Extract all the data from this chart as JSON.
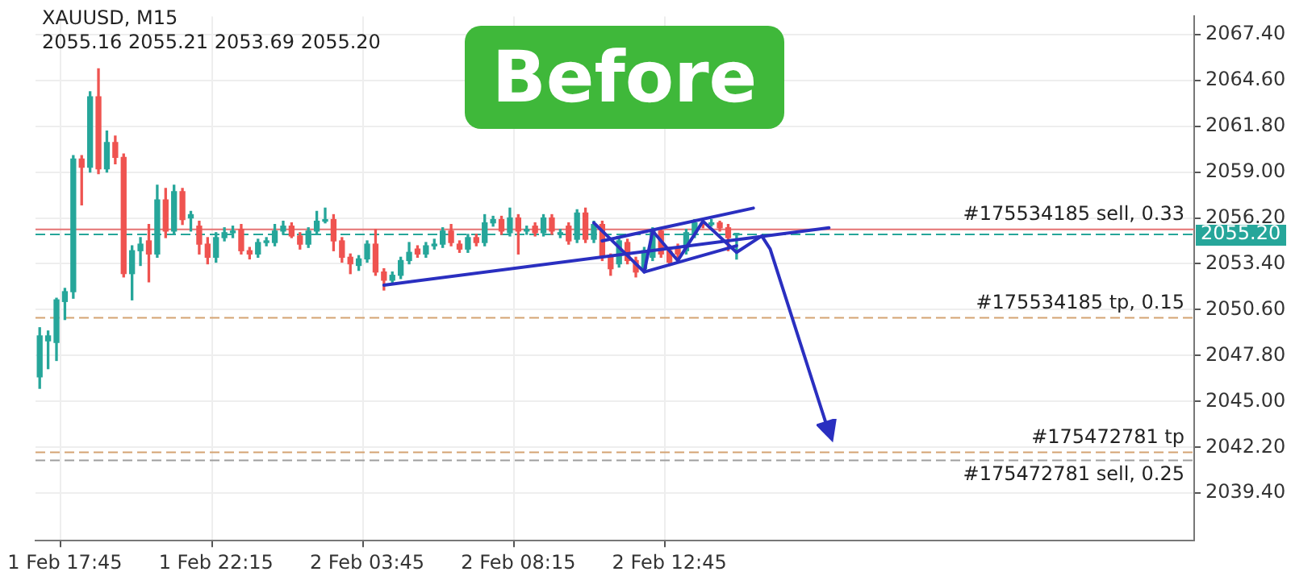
{
  "chart_data": {
    "type": "candlestick",
    "title": "XAUUSD, M15",
    "subtitle": "2055.16 2055.21 2053.69 2055.20",
    "annotations": [
      "Before"
    ],
    "categories": [
      null,
      null,
      null,
      "1 Feb 17:45",
      null,
      null,
      null,
      null,
      null,
      null,
      null,
      null,
      null,
      null,
      null,
      null,
      null,
      null,
      null,
      null,
      null,
      "1 Feb 22:15",
      null,
      null,
      null,
      null,
      null,
      null,
      null,
      null,
      null,
      null,
      null,
      null,
      null,
      null,
      null,
      null,
      null,
      "2 Feb 03:45",
      null,
      null,
      null,
      null,
      null,
      null,
      null,
      null,
      null,
      null,
      null,
      null,
      null,
      null,
      null,
      null,
      null,
      "2 Feb 08:15",
      null,
      null,
      null,
      null,
      null,
      null,
      null,
      null,
      null,
      null,
      null,
      null,
      null,
      null,
      null,
      null,
      null,
      "2 Feb 12:45",
      null,
      null,
      null,
      null,
      null,
      null,
      null,
      null,
      null,
      null,
      null,
      null,
      null,
      null,
      null,
      null,
      null,
      null,
      null,
      null,
      null,
      null,
      null,
      null,
      null,
      null,
      null,
      null,
      null,
      null,
      null,
      null,
      null,
      null,
      null,
      null,
      null,
      null,
      null,
      null,
      null,
      null,
      null,
      null,
      null,
      null,
      null,
      null,
      null,
      null,
      null,
      null,
      null,
      null,
      null,
      null,
      null,
      null,
      null,
      null,
      null,
      null
    ],
    "ohlc": [
      [
        2046.5,
        2049.5,
        2045.8,
        2049.0
      ],
      [
        2048.7,
        2049.3,
        2047.0,
        2049.0
      ],
      [
        2048.6,
        2051.3,
        2047.5,
        2051.2
      ],
      [
        2051.1,
        2051.9,
        2050.0,
        2051.7
      ],
      [
        2051.7,
        2060.0,
        2051.3,
        2059.8
      ],
      [
        2059.8,
        2060.0,
        2057.0,
        2059.3
      ],
      [
        2059.3,
        2063.9,
        2059.0,
        2063.6
      ],
      [
        2063.6,
        2065.3,
        2058.9,
        2059.2
      ],
      [
        2059.2,
        2061.5,
        2059.0,
        2060.8
      ],
      [
        2060.8,
        2061.2,
        2059.5,
        2059.9
      ],
      [
        2059.9,
        2060.1,
        2052.6,
        2052.8
      ],
      [
        2052.8,
        2054.5,
        2051.2,
        2054.2
      ],
      [
        2054.2,
        2055.0,
        2053.3,
        2054.6
      ],
      [
        2054.8,
        2055.8,
        2052.3,
        2054.0
      ],
      [
        2054.0,
        2058.2,
        2053.8,
        2057.3
      ],
      [
        2057.3,
        2058.0,
        2055.0,
        2055.4
      ],
      [
        2055.4,
        2058.2,
        2055.2,
        2057.8
      ],
      [
        2057.8,
        2058.0,
        2055.8,
        2056.1
      ],
      [
        2056.2,
        2056.6,
        2055.4,
        2056.4
      ],
      [
        2055.7,
        2056.0,
        2054.0,
        2054.6
      ],
      [
        2054.6,
        2055.0,
        2053.4,
        2053.8
      ],
      [
        2053.8,
        2055.3,
        2053.5,
        2055.0
      ],
      [
        2055.0,
        2055.6,
        2054.8,
        2055.3
      ],
      [
        2055.3,
        2055.7,
        2055.0,
        2055.4
      ],
      [
        2055.5,
        2055.8,
        2054.0,
        2054.2
      ],
      [
        2054.2,
        2054.4,
        2053.7,
        2054.0
      ],
      [
        2054.0,
        2054.9,
        2053.8,
        2054.7
      ],
      [
        2054.7,
        2055.0,
        2054.5,
        2054.8
      ],
      [
        2054.7,
        2055.8,
        2054.5,
        2055.4
      ],
      [
        2055.4,
        2056.0,
        2055.2,
        2055.7
      ],
      [
        2055.7,
        2055.9,
        2055.0,
        2055.1
      ],
      [
        2055.1,
        2055.3,
        2054.3,
        2054.6
      ],
      [
        2054.6,
        2055.6,
        2054.4,
        2055.4
      ],
      [
        2055.4,
        2056.6,
        2055.2,
        2056.0
      ],
      [
        2056.0,
        2056.8,
        2055.9,
        2056.1
      ],
      [
        2056.1,
        2056.4,
        2054.2,
        2054.8
      ],
      [
        2054.8,
        2055.0,
        2053.5,
        2053.8
      ],
      [
        2053.8,
        2054.0,
        2052.8,
        2053.4
      ],
      [
        2053.3,
        2053.9,
        2053.0,
        2053.7
      ],
      [
        2053.7,
        2054.8,
        2053.5,
        2054.6
      ],
      [
        2054.6,
        2055.5,
        2052.7,
        2052.9
      ],
      [
        2052.9,
        2053.1,
        2051.8,
        2052.4
      ],
      [
        2052.4,
        2052.9,
        2052.2,
        2052.7
      ],
      [
        2052.7,
        2053.8,
        2052.5,
        2053.6
      ],
      [
        2053.6,
        2054.7,
        2053.4,
        2054.1
      ],
      [
        2054.3,
        2054.5,
        2053.8,
        2054.0
      ],
      [
        2054.0,
        2054.7,
        2053.8,
        2054.5
      ],
      [
        2054.5,
        2054.9,
        2054.3,
        2054.6
      ],
      [
        2054.6,
        2055.6,
        2054.4,
        2055.4
      ],
      [
        2055.4,
        2055.8,
        2054.5,
        2054.7
      ],
      [
        2054.6,
        2054.8,
        2054.1,
        2054.3
      ],
      [
        2054.3,
        2055.2,
        2054.1,
        2055.0
      ],
      [
        2055.0,
        2055.2,
        2054.5,
        2054.7
      ],
      [
        2054.7,
        2056.4,
        2054.5,
        2055.9
      ],
      [
        2055.9,
        2056.3,
        2055.7,
        2056.1
      ],
      [
        2056.1,
        2056.3,
        2055.2,
        2055.4
      ],
      [
        2055.3,
        2056.8,
        2055.1,
        2056.2
      ],
      [
        2056.2,
        2056.4,
        2054.0,
        2055.4
      ],
      [
        2055.4,
        2055.7,
        2055.2,
        2055.5
      ],
      [
        2055.7,
        2055.9,
        2055.1,
        2055.3
      ],
      [
        2055.3,
        2056.4,
        2055.1,
        2056.2
      ],
      [
        2056.2,
        2056.4,
        2055.2,
        2055.4
      ],
      [
        2055.2,
        2055.5,
        2055.0,
        2055.3
      ],
      [
        2055.7,
        2055.9,
        2054.6,
        2054.8
      ],
      [
        2054.9,
        2056.7,
        2054.7,
        2056.5
      ],
      [
        2056.5,
        2056.8,
        2054.7,
        2054.9
      ],
      [
        2054.9,
        2056.0,
        2054.7,
        2055.8
      ],
      [
        2055.8,
        2056.0,
        2053.6,
        2053.8
      ],
      [
        2053.8,
        2054.0,
        2052.7,
        2053.1
      ],
      [
        2053.4,
        2055.0,
        2053.2,
        2054.8
      ],
      [
        2054.7,
        2054.9,
        2053.4,
        2053.6
      ],
      [
        2053.6,
        2053.8,
        2052.6,
        2052.9
      ],
      [
        2053.1,
        2054.4,
        2052.9,
        2054.2
      ],
      [
        2053.8,
        2055.6,
        2053.6,
        2055.4
      ],
      [
        2055.4,
        2055.6,
        2053.8,
        2054.0
      ],
      [
        2054.2,
        2054.4,
        2053.3,
        2053.5
      ],
      [
        2054.4,
        2054.6,
        2053.8,
        2054.0
      ],
      [
        2054.2,
        2055.5,
        2054.0,
        2055.3
      ],
      [
        2055.2,
        2056.1,
        2055.0,
        2055.9
      ],
      [
        2055.9,
        2056.1,
        2055.6,
        2055.8
      ],
      [
        2055.8,
        2056.1,
        2055.7,
        2055.9
      ],
      [
        2055.9,
        2056.0,
        2055.4,
        2055.6
      ],
      [
        2055.6,
        2055.8,
        2054.2,
        2055.0
      ],
      [
        2055.16,
        2055.21,
        2053.69,
        2055.2
      ],
      null,
      null,
      null,
      null,
      null,
      null,
      null,
      null,
      null,
      null,
      null,
      null,
      null,
      null,
      null,
      null,
      null,
      null,
      null,
      null,
      null,
      null,
      null,
      null,
      null,
      null,
      null,
      null,
      null,
      null,
      null,
      null,
      null,
      null,
      null,
      null,
      null,
      null,
      null,
      null,
      null,
      null,
      null,
      null,
      null,
      null,
      null,
      null,
      null,
      null,
      null,
      null,
      null,
      null
    ],
    "colors": [
      "#26a69a",
      "#26a69a",
      "#26a69a",
      "#26a69a",
      "#26a69a",
      "#ef5350",
      "#26a69a",
      "#ef5350",
      "#26a69a",
      "#ef5350",
      "#ef5350",
      "#26a69a",
      "#26a69a",
      "#ef5350",
      "#26a69a",
      "#ef5350",
      "#26a69a",
      "#ef5350",
      "#26a69a",
      "#ef5350",
      "#ef5350",
      "#26a69a",
      "#26a69a",
      "#26a69a",
      "#ef5350",
      "#ef5350",
      "#26a69a",
      "#26a69a",
      "#26a69a",
      "#26a69a",
      "#ef5350",
      "#ef5350",
      "#26a69a",
      "#26a69a",
      "#26a69a",
      "#ef5350",
      "#ef5350",
      "#ef5350",
      "#26a69a",
      "#26a69a",
      "#ef5350",
      "#ef5350",
      "#26a69a",
      "#26a69a",
      "#26a69a",
      "#ef5350",
      "#26a69a",
      "#26a69a",
      "#26a69a",
      "#ef5350",
      "#ef5350",
      "#26a69a",
      "#ef5350",
      "#26a69a",
      "#26a69a",
      "#ef5350",
      "#26a69a",
      "#ef5350",
      "#26a69a",
      "#ef5350",
      "#26a69a",
      "#ef5350",
      "#26a69a",
      "#ef5350",
      "#26a69a",
      "#ef5350",
      "#26a69a",
      "#ef5350",
      "#ef5350",
      "#26a69a",
      "#ef5350",
      "#ef5350",
      "#26a69a",
      "#26a69a",
      "#ef5350",
      "#ef5350",
      "#ef5350",
      "#26a69a",
      "#26a69a",
      "#ef5350",
      "#26a69a",
      "#ef5350",
      "#ef5350",
      "#26a69a",
      null,
      null,
      null,
      null,
      null,
      null,
      null,
      null,
      null,
      null,
      null,
      null,
      null,
      null,
      null,
      null,
      null,
      null,
      null,
      null,
      null,
      null,
      null,
      null,
      null,
      null,
      null,
      null,
      null,
      null,
      null,
      null,
      null,
      null,
      null,
      null,
      null,
      null,
      null,
      null,
      null,
      null,
      null,
      null,
      null,
      null,
      null,
      null,
      null,
      null,
      null,
      null,
      null,
      null
    ],
    "series": [
      {
        "type": "line",
        "color": "#2a2fc0",
        "values": [
          null,
          null,
          null,
          null,
          null,
          null,
          null,
          null,
          null,
          null,
          null,
          null,
          null,
          null,
          null,
          null,
          null,
          null,
          null,
          null,
          null,
          null,
          null,
          null,
          null,
          null,
          null,
          null,
          null,
          null,
          null,
          null,
          null,
          null,
          null,
          null,
          null,
          null,
          null,
          null,
          null,
          2052.1,
          null,
          null,
          null,
          null,
          null,
          null,
          null,
          null,
          null,
          null,
          null,
          null,
          null,
          null,
          null,
          null,
          null,
          null,
          null,
          null,
          null,
          null,
          null,
          null,
          null,
          null,
          null,
          null,
          null,
          null,
          null,
          null,
          null,
          null,
          null,
          null,
          null,
          null,
          null,
          null,
          null,
          null,
          null,
          null,
          null,
          null,
          null,
          null,
          null,
          null,
          null,
          null,
          2055.6,
          null,
          null,
          null,
          null,
          null,
          null,
          null,
          null,
          null,
          null,
          null,
          null,
          null,
          null,
          null,
          null,
          null,
          null,
          null,
          null,
          null,
          null,
          null,
          null,
          null,
          null,
          null,
          null,
          null,
          null,
          null,
          null,
          null,
          null,
          null,
          null,
          null,
          null,
          null,
          null,
          null,
          null,
          null
        ]
      },
      {
        "type": "line",
        "color": "#2a2fc0",
        "values": [
          null,
          null,
          null,
          null,
          null,
          null,
          null,
          null,
          null,
          null,
          null,
          null,
          null,
          null,
          null,
          null,
          null,
          null,
          null,
          null,
          null,
          null,
          null,
          null,
          null,
          null,
          null,
          null,
          null,
          null,
          null,
          null,
          null,
          null,
          null,
          null,
          null,
          null,
          null,
          null,
          null,
          null,
          null,
          null,
          null,
          null,
          null,
          null,
          null,
          null,
          null,
          null,
          null,
          null,
          null,
          null,
          null,
          null,
          null,
          null,
          null,
          null,
          null,
          null,
          null,
          null,
          null,
          2054.8,
          null,
          null,
          null,
          null,
          null,
          null,
          null,
          null,
          null,
          null,
          null,
          null,
          null,
          null,
          null,
          null,
          null,
          2056.8,
          null,
          null,
          null,
          null,
          null,
          null,
          null,
          null,
          null,
          null,
          null,
          null,
          null,
          null,
          null,
          null,
          null,
          null,
          null,
          null,
          null,
          null,
          null,
          null,
          null,
          null,
          null,
          null,
          null,
          null,
          null,
          null,
          null,
          null,
          null,
          null,
          null,
          null,
          null,
          null,
          null,
          null,
          null,
          null,
          null,
          null,
          null,
          null,
          null,
          null,
          null,
          null
        ]
      },
      {
        "type": "line",
        "color": "#2a2fc0",
        "values": [
          null,
          null,
          null,
          null,
          null,
          null,
          null,
          null,
          null,
          null,
          null,
          null,
          null,
          null,
          null,
          null,
          null,
          null,
          null,
          null,
          null,
          null,
          null,
          null,
          null,
          null,
          null,
          null,
          null,
          null,
          null,
          null,
          null,
          null,
          null,
          null,
          null,
          null,
          null,
          null,
          null,
          null,
          null,
          null,
          null,
          null,
          null,
          null,
          null,
          null,
          null,
          null,
          null,
          null,
          null,
          null,
          null,
          null,
          null,
          null,
          null,
          null,
          null,
          null,
          null,
          null,
          null,
          null,
          null,
          null,
          null,
          null,
          2052.9,
          null,
          null,
          null,
          null,
          null,
          null,
          null,
          null,
          null,
          null,
          2054.5,
          null,
          null,
          null,
          null,
          null,
          null,
          null,
          null,
          null,
          null,
          null,
          null,
          null,
          null,
          null,
          null,
          null,
          null,
          null,
          null,
          null,
          null,
          null,
          null,
          null,
          null,
          null,
          null,
          null,
          null,
          null,
          null,
          null,
          null,
          null,
          null,
          null,
          null,
          null,
          null,
          null,
          null,
          null,
          null,
          null,
          null,
          null,
          null,
          null,
          null,
          null,
          null,
          null,
          null
        ]
      },
      {
        "type": "line",
        "color": "#2a2fc0",
        "values": [
          null,
          null,
          null,
          null,
          null,
          null,
          null,
          null,
          null,
          null,
          null,
          null,
          null,
          null,
          null,
          null,
          null,
          null,
          null,
          null,
          null,
          null,
          null,
          null,
          null,
          null,
          null,
          null,
          null,
          null,
          null,
          null,
          null,
          null,
          null,
          null,
          null,
          null,
          null,
          null,
          null,
          null,
          null,
          null,
          null,
          null,
          null,
          null,
          null,
          null,
          null,
          null,
          null,
          null,
          null,
          null,
          null,
          null,
          null,
          null,
          null,
          null,
          null,
          null,
          null,
          null,
          2055.9,
          null,
          null,
          null,
          null,
          null,
          2052.9,
          2055.4,
          null,
          null,
          2053.6,
          null,
          null,
          2056.0,
          null,
          null,
          null,
          2054.1,
          null,
          null,
          2055.1,
          2054.3,
          null,
          null,
          null,
          null,
          null,
          null,
          2043.1,
          null,
          null,
          null,
          null,
          null,
          null,
          null,
          null,
          null,
          null,
          null,
          null,
          null,
          null,
          null,
          null,
          null,
          null,
          null,
          null,
          null,
          null,
          null,
          null,
          null,
          null,
          null,
          null,
          null,
          null,
          null,
          null,
          null,
          null,
          null,
          null,
          null,
          null,
          null,
          null,
          null,
          null,
          null
        ]
      }
    ],
    "ylim": [
      2036.5,
      2068.5
    ],
    "yticks": [
      {
        "value": 2039.4,
        "label": "2039.40"
      },
      {
        "value": 2042.2,
        "label": "2042.20"
      },
      {
        "value": 2045.0,
        "label": "2045.00"
      },
      {
        "value": 2047.8,
        "label": "2047.80"
      },
      {
        "value": 2050.6,
        "label": "2050.60"
      },
      {
        "value": 2053.4,
        "label": "2053.40"
      },
      {
        "value": 2056.2,
        "label": "2056.20"
      },
      {
        "value": 2059.0,
        "label": "2059.00"
      },
      {
        "value": 2061.8,
        "label": "2061.80"
      },
      {
        "value": 2064.6,
        "label": "2064.60"
      },
      {
        "value": 2067.4,
        "label": "2067.40"
      }
    ],
    "grid": true,
    "ref_lines": [
      {
        "axis": "y",
        "value": 2055.2,
        "label": "2055.20",
        "color": "#26a69a",
        "line_style": "dashed"
      },
      {
        "axis": "y",
        "value": 2055.5,
        "label": "#175534185 sell, 0.33",
        "color": "#e57373"
      },
      {
        "axis": "y",
        "value": 2050.1,
        "label": "#175534185 tp, 0.15",
        "color": "#d4a373",
        "line_style": "dashed"
      },
      {
        "axis": "y",
        "value": 2041.9,
        "label": "#175472781 tp",
        "color": "#d4a373",
        "line_style": "dashed"
      },
      {
        "axis": "y",
        "value": 2041.4,
        "label": "#175472781 sell, 0.25",
        "color": "#9e9e9e",
        "line_style": "dashed"
      }
    ]
  }
}
